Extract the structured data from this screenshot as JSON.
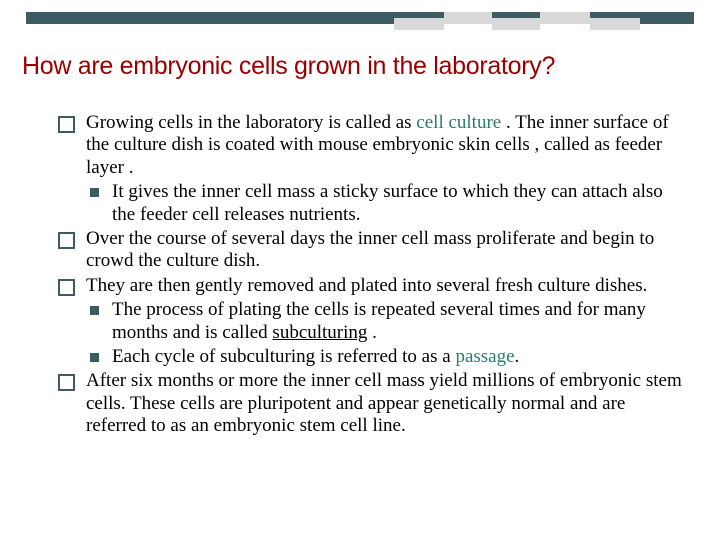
{
  "decoration": {
    "main_bar_color": "#3e5b62",
    "light_color": "#d9d9d9"
  },
  "title": "How are embryonic cells grown in the laboratory?",
  "bullets": {
    "q1_a": "Growing cells in the laboratory is called as ",
    "q1_teal": "cell culture",
    "q1_b": " . The inner surface of the culture dish is coated with mouse embryonic skin cells , called as feeder layer .",
    "s1": "It gives the inner cell mass a sticky surface to which they can attach also the feeder cell releases nutrients.",
    "q2": "Over the course of several days the inner cell mass proliferate and begin to crowd the culture dish.",
    "q3": "They are then gently removed and plated into several fresh culture dishes.",
    "s2_a": "The process of plating the cells is repeated several times and for many months and is called ",
    "s2_u": "subculturing",
    "s2_b": " .",
    "s3_a": "Each cycle of subculturing is referred to as a ",
    "s3_teal": "passage",
    "s3_b": ".",
    "q4": "After six months or more the inner cell mass yield millions of embryonic stem cells. These cells are pluripotent and appear genetically normal and are referred to as an embryonic stem cell line."
  }
}
